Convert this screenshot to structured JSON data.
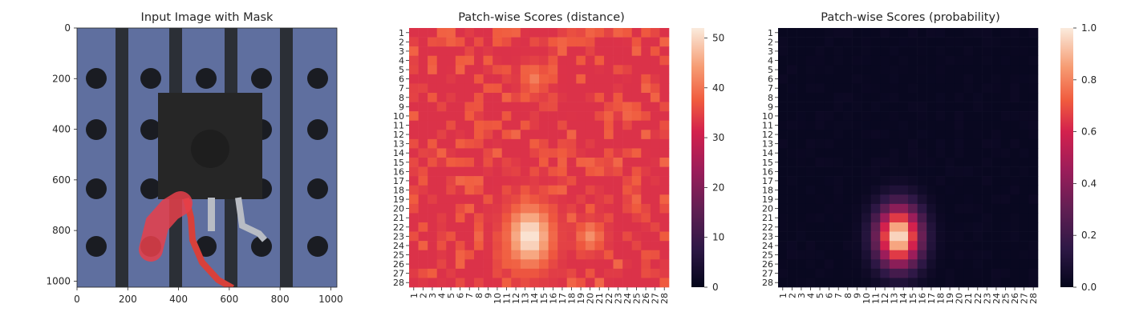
{
  "chart_data": [
    {
      "type": "image",
      "title": "Input Image with Mask",
      "xticks": [
        "0",
        "200",
        "400",
        "600",
        "800",
        "1000"
      ],
      "yticks": [
        "0",
        "200",
        "400",
        "600",
        "800",
        "1000"
      ],
      "x_range": [
        0,
        1024
      ],
      "y_range": [
        0,
        1024
      ],
      "colors": {
        "background": "#5f6f9f",
        "strip": "#2b2f36",
        "hole": "#1a1c22",
        "component": "#262626",
        "leg": "#b8bcc4",
        "mask": "#e8404a",
        "wire": "#d8403a"
      }
    },
    {
      "type": "heatmap",
      "title": "Patch-wise Scores (distance)",
      "rows": 28,
      "cols": 28,
      "labels": [
        "1",
        "2",
        "3",
        "4",
        "5",
        "6",
        "7",
        "8",
        "9",
        "10",
        "11",
        "12",
        "13",
        "14",
        "15",
        "16",
        "17",
        "18",
        "19",
        "20",
        "21",
        "22",
        "23",
        "24",
        "25",
        "26",
        "27",
        "28"
      ],
      "colorbar": {
        "min": 0,
        "max": 52,
        "ticks": [
          "0",
          "10",
          "20",
          "30",
          "40",
          "50"
        ]
      },
      "colormap": "rocket",
      "background_level": 33,
      "hotspots": [
        {
          "row": 23,
          "col": 13.5,
          "peak": 52
        },
        {
          "row": 6,
          "col": 14,
          "peak": 41
        },
        {
          "row": 23,
          "col": 20,
          "peak": 43
        }
      ]
    },
    {
      "type": "heatmap",
      "title": "Patch-wise Scores (probability)",
      "rows": 28,
      "cols": 28,
      "labels": [
        "1",
        "2",
        "3",
        "4",
        "5",
        "6",
        "7",
        "8",
        "9",
        "10",
        "11",
        "12",
        "13",
        "14",
        "15",
        "16",
        "17",
        "18",
        "19",
        "20",
        "21",
        "22",
        "23",
        "24",
        "25",
        "26",
        "27",
        "28"
      ],
      "colorbar": {
        "min": 0.0,
        "max": 1.0,
        "ticks": [
          "0.0",
          "0.2",
          "0.4",
          "0.6",
          "0.8",
          "1.0"
        ]
      },
      "colormap": "rocket",
      "background_level": 0.02,
      "hotspots": [
        {
          "row": 23,
          "col": 13.5,
          "peak": 1.0
        }
      ]
    }
  ]
}
